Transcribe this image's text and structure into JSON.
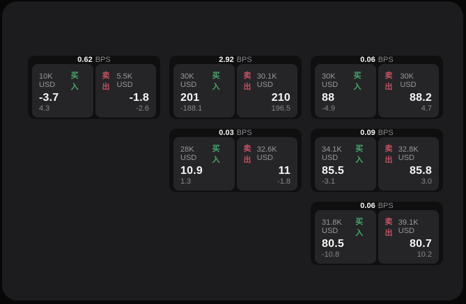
{
  "labels": {
    "bps_unit": "BPS",
    "buy": "买入",
    "sell": "卖出"
  },
  "colors": {
    "buy": "#46a86c",
    "sell": "#c25063",
    "panel_bg": "#1c1c1e",
    "card_bg": "#0f0f10",
    "tile_bg": "#252527"
  },
  "cards": [
    {
      "bps": "0.62",
      "buy": {
        "amount": "10K USD",
        "value": "-3.7",
        "delta": "4.3"
      },
      "sell": {
        "amount": "5.5K USD",
        "value": "-1.8",
        "delta": "-2.6"
      }
    },
    {
      "bps": "2.92",
      "buy": {
        "amount": "30K USD",
        "value": "201",
        "delta": "-188.1"
      },
      "sell": {
        "amount": "30.1K USD",
        "value": "210",
        "delta": "196.5"
      }
    },
    {
      "bps": "0.06",
      "buy": {
        "amount": "30K USD",
        "value": "88",
        "delta": "-4.9"
      },
      "sell": {
        "amount": "30K USD",
        "value": "88.2",
        "delta": "4.7"
      }
    },
    {
      "bps": "0.03",
      "buy": {
        "amount": "28K USD",
        "value": "10.9",
        "delta": "1.3"
      },
      "sell": {
        "amount": "32.6K USD",
        "value": "11",
        "delta": "-1.8"
      }
    },
    {
      "bps": "0.09",
      "buy": {
        "amount": "34.1K USD",
        "value": "85.5",
        "delta": "-3.1"
      },
      "sell": {
        "amount": "32.8K USD",
        "value": "85.8",
        "delta": "3.0"
      }
    },
    {
      "bps": "0.06",
      "buy": {
        "amount": "31.8K USD",
        "value": "80.5",
        "delta": "-10.8"
      },
      "sell": {
        "amount": "39.1K USD",
        "value": "80.7",
        "delta": "10.2"
      }
    }
  ]
}
